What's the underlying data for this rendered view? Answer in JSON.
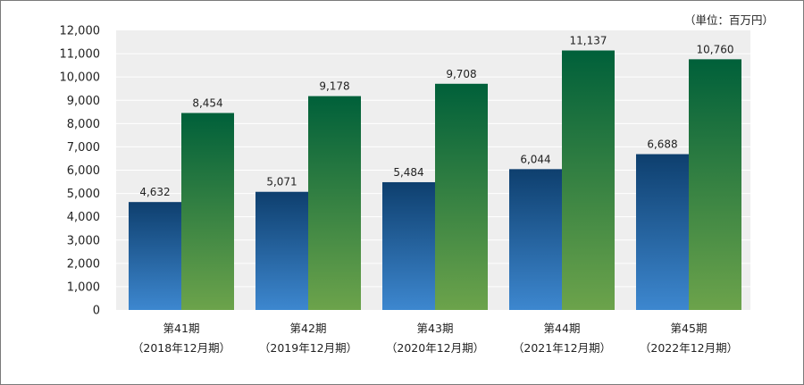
{
  "unit_label": "（単位：百万円）",
  "chart_data": {
    "type": "bar",
    "categories": [
      "第41期",
      "第42期",
      "第43期",
      "第44期",
      "第45期"
    ],
    "category_sublabels": [
      "（2018年12月期）",
      "（2019年12月期）",
      "（2020年12月期）",
      "（2021年12月期）",
      "（2022年12月期）"
    ],
    "series": [
      {
        "values": [
          4632,
          5071,
          5484,
          6044,
          6688
        ],
        "color_top": "#0e3f6e",
        "color_bottom": "#3d87cf"
      },
      {
        "values": [
          8454,
          9178,
          9708,
          11137,
          10760
        ],
        "color_top": "#00603a",
        "color_bottom": "#6ca34b"
      }
    ],
    "data_labels": [
      [
        "4,632",
        "5,071",
        "5,484",
        "6,044",
        "6,688"
      ],
      [
        "8,454",
        "9,178",
        "9,708",
        "11,137",
        "10,760"
      ]
    ],
    "yticks": [
      "0",
      "1,000",
      "2,000",
      "3,000",
      "4,000",
      "5,000",
      "6,000",
      "7,000",
      "8,000",
      "9,000",
      "10,000",
      "11,000",
      "12,000"
    ],
    "ylim": [
      0,
      12000
    ],
    "grid": true,
    "plot_background": "#eeeeee",
    "grid_color": "#ffffff"
  }
}
